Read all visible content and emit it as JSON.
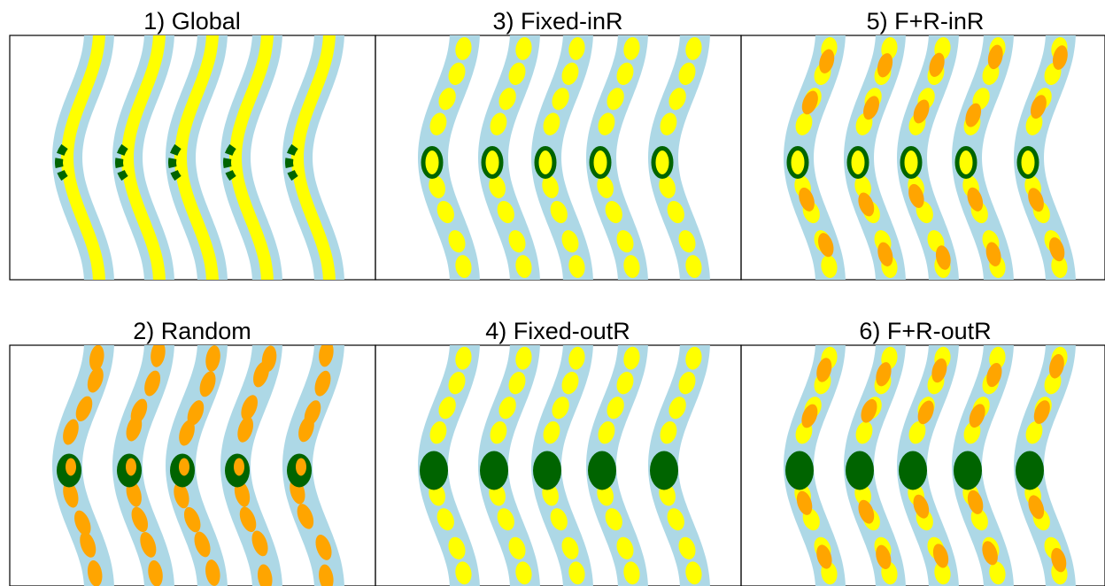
{
  "colors": {
    "background": "#ffffff",
    "stream": "#add8e6",
    "yellow": "#ffff00",
    "orange": "#ffa500",
    "green": "#006400",
    "frame": "#000000"
  },
  "panels": [
    {
      "id": "p1",
      "title": "1) Global",
      "style": "global"
    },
    {
      "id": "p3",
      "title": "3) Fixed-inR",
      "style": "fixed-inR"
    },
    {
      "id": "p5",
      "title": "5) F+R-inR",
      "style": "fr-inR"
    },
    {
      "id": "p2",
      "title": "2) Random",
      "style": "random"
    },
    {
      "id": "p4",
      "title": "4) Fixed-outR",
      "style": "fixed-outR"
    },
    {
      "id": "p6",
      "title": "6) F+R-outR",
      "style": "fr-outR"
    }
  ],
  "streams_per_panel": 5
}
